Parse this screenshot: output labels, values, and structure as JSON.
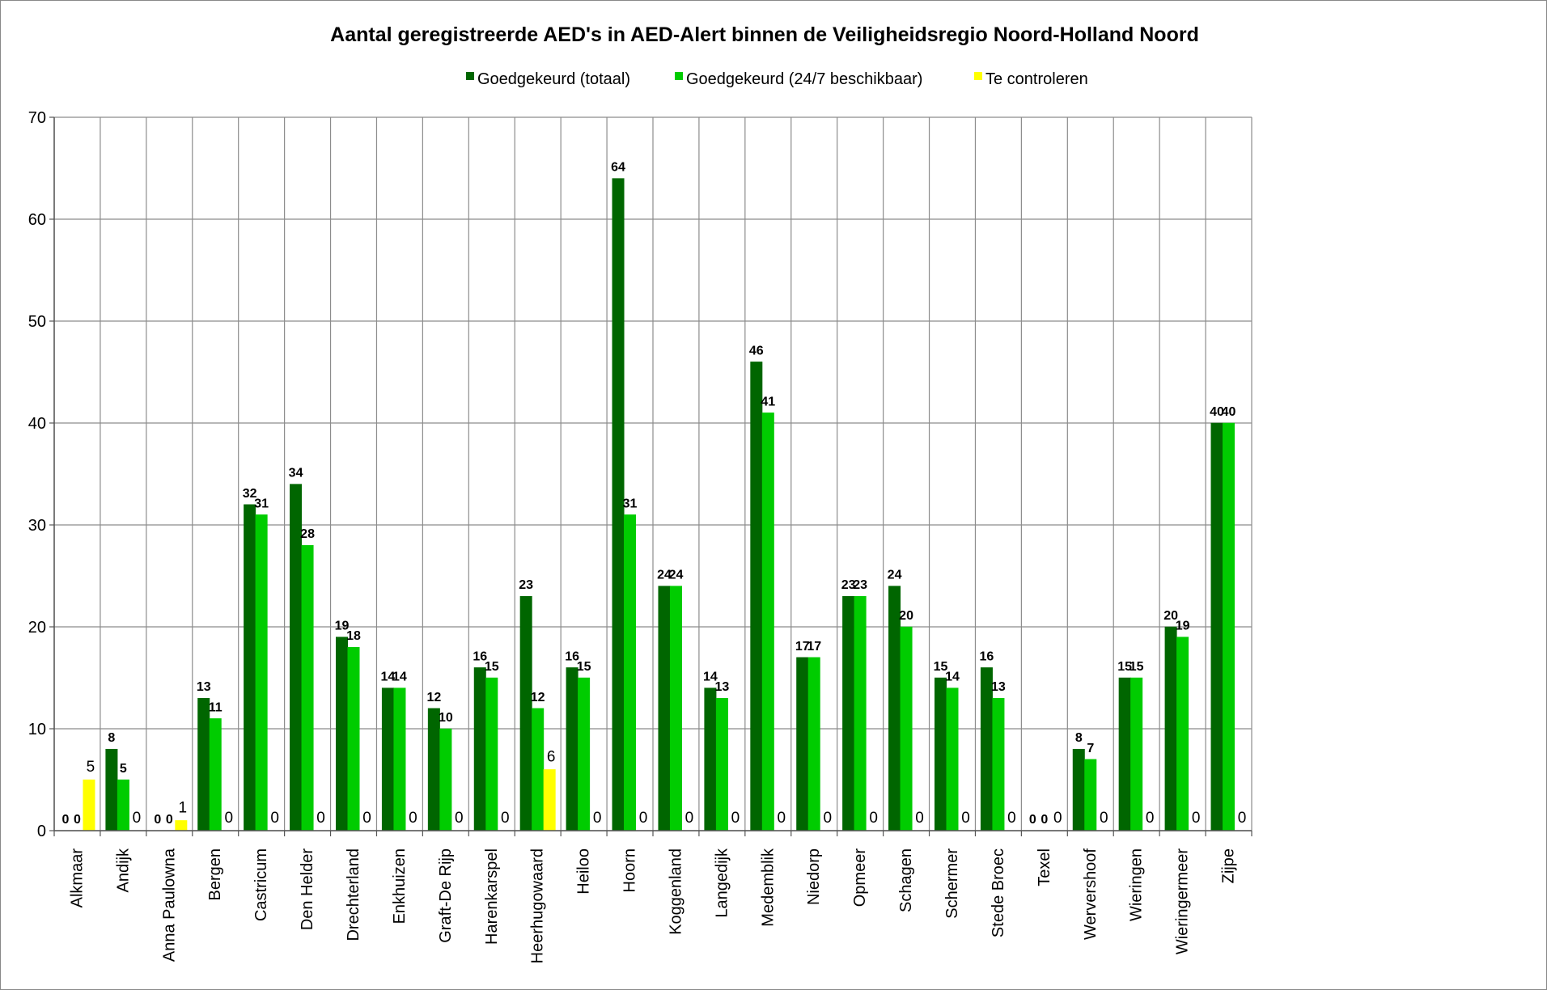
{
  "chart_data": {
    "type": "bar",
    "title": "Aantal geregistreerde AED's in AED-Alert binnen de Veiligheidsregio Noord-Holland Noord",
    "xlabel": "",
    "ylabel": "",
    "ylim": [
      0,
      70
    ],
    "yticks": [
      "0",
      "10",
      "20",
      "30",
      "40",
      "50",
      "60",
      "70"
    ],
    "grid": true,
    "legend_position": "top",
    "categories": [
      "Alkmaar",
      "Andijk",
      "Anna Paulowna",
      "Bergen",
      "Castricum",
      "Den Helder",
      "Drechterland",
      "Enkhuizen",
      "Graft-De Rijp",
      "Harenkarspel",
      "Heerhugowaard",
      "Heiloo",
      "Hoorn",
      "Koggenland",
      "Langedijk",
      "Medemblik",
      "Niedorp",
      "Opmeer",
      "Schagen",
      "Schermer",
      "Stede Broec",
      "Texel",
      "Wervershoof",
      "Wieringen",
      "Wieringermeer",
      "Zijpe"
    ],
    "series": [
      {
        "name": "Goedgekeurd (totaal)",
        "color": "#006600",
        "values": [
          0,
          8,
          0,
          13,
          32,
          34,
          19,
          14,
          12,
          16,
          23,
          16,
          64,
          24,
          14,
          46,
          17,
          23,
          24,
          15,
          16,
          0,
          8,
          15,
          20,
          40
        ]
      },
      {
        "name": "Goedgekeurd (24/7 beschikbaar)",
        "color": "#00CC00",
        "values": [
          0,
          5,
          0,
          11,
          31,
          28,
          18,
          14,
          10,
          15,
          12,
          15,
          31,
          24,
          13,
          41,
          17,
          23,
          20,
          14,
          13,
          0,
          7,
          15,
          19,
          40
        ]
      },
      {
        "name": "Te controleren",
        "color": "#FFFF00",
        "values": [
          5,
          0,
          1,
          0,
          0,
          0,
          0,
          0,
          0,
          0,
          6,
          0,
          0,
          0,
          0,
          0,
          0,
          0,
          0,
          0,
          0,
          0,
          0,
          0,
          0,
          0
        ]
      }
    ]
  }
}
